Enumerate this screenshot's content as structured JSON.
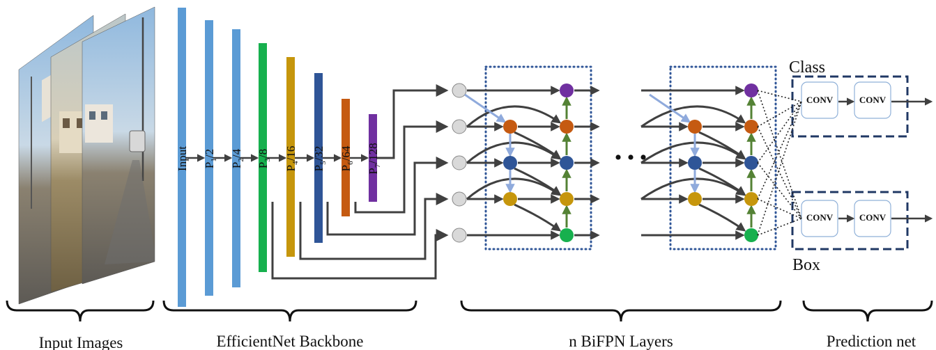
{
  "sections": {
    "input_images": "Input Images",
    "backbone": "EfficientNet Backbone",
    "bifpn": "n BiFPN Layers",
    "prediction": "Prediction net"
  },
  "backbone_layers": [
    {
      "label": "Input",
      "color": "#5b9bd5"
    },
    {
      "label": "P1/2",
      "color": "#5b9bd5"
    },
    {
      "label": "P2/4",
      "color": "#5b9bd5"
    },
    {
      "label": "P3/8",
      "color": "#17b04e"
    },
    {
      "label": "P4/16",
      "color": "#c6960c"
    },
    {
      "label": "P5/32",
      "color": "#2f5597"
    },
    {
      "label": "P6/64",
      "color": "#c55a11"
    },
    {
      "label": "P7/128",
      "color": "#7030a0"
    }
  ],
  "node_colors": {
    "P7": "#7030a0",
    "P6": "#c55a11",
    "P5": "#2f5597",
    "P4": "#c6960c",
    "P3": "#17b04e",
    "input_node": "#d9d9d9"
  },
  "ellipsis": "• • •",
  "prediction_net": {
    "class_label": "Class",
    "box_label": "Box",
    "conv_label": "CONV"
  },
  "colors": {
    "arrow": "#404040",
    "top_down_arrow": "#8faadc",
    "bottom_up_arrow": "#548235",
    "dotted_box": "#2f5597",
    "dashed_box": "#203864"
  }
}
